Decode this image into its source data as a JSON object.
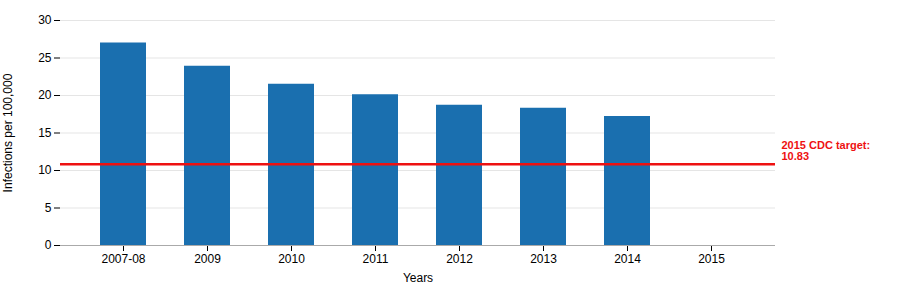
{
  "chart_data": {
    "type": "bar",
    "categories": [
      "2007-08",
      "2009",
      "2010",
      "2011",
      "2012",
      "2013",
      "2014",
      "2015"
    ],
    "values": [
      27.0,
      23.9,
      21.5,
      20.1,
      18.7,
      18.3,
      17.2,
      null
    ],
    "color": "#1A6FAF",
    "xlabel": "Years",
    "ylabel": "Infections per 100,000",
    "ylim": [
      0,
      30
    ],
    "yticks": [
      0,
      5,
      10,
      15,
      20,
      25,
      30
    ],
    "grid": true,
    "target_line": {
      "value": 10.83,
      "color": "#EE1111",
      "text": [
        "2015 CDC target:",
        "10.83"
      ]
    }
  }
}
